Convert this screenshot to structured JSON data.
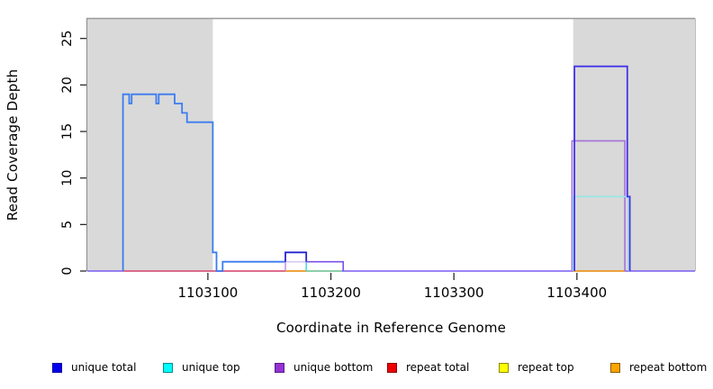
{
  "chart_data": {
    "type": "line",
    "title": "",
    "xlabel": "Coordinate in Reference Genome",
    "ylabel": "Read Coverage Depth",
    "x_range": [
      1103002,
      1103496
    ],
    "y_range": [
      0,
      27
    ],
    "grid": false,
    "legend_position": "bottom",
    "x_ticks": [
      {
        "value": 1103100,
        "label": "1103100"
      },
      {
        "value": 1103200,
        "label": "1103200"
      },
      {
        "value": 1103300,
        "label": "1103300"
      },
      {
        "value": 1103400,
        "label": "1103400"
      }
    ],
    "y_ticks": [
      {
        "value": 0,
        "label": "0"
      },
      {
        "value": 5,
        "label": "5"
      },
      {
        "value": 10,
        "label": "10"
      },
      {
        "value": 15,
        "label": "15"
      },
      {
        "value": 20,
        "label": "20"
      },
      {
        "value": 25,
        "label": "25"
      }
    ],
    "shaded_regions": [
      {
        "name": "left-repeat-region",
        "from": 1103002,
        "to": 1103104,
        "color": "#d9d9d9"
      },
      {
        "name": "right-repeat-region",
        "from": 1103397,
        "to": 1103496,
        "color": "#d9d9d9"
      }
    ],
    "baseline_segments": [
      {
        "name": "unique-bottom-zero-line",
        "from": 1103002,
        "to": 1103496,
        "depth": 0,
        "color": "#7a5cf2"
      },
      {
        "name": "repeat-total-zero-segment",
        "from": 1103031,
        "to": 1103163,
        "depth": 0,
        "color": "#e8596b"
      },
      {
        "name": "overlap-zero-segment",
        "from": 1103180,
        "to": 1103209,
        "depth": 0,
        "color": "#7fd98f"
      },
      {
        "name": "repeat-bottom-zero-mid",
        "from": 1103163,
        "to": 1103180,
        "depth": 0,
        "color": "#ffa000"
      },
      {
        "name": "repeat-bottom-zero-right",
        "from": 1103397,
        "to": 1103439,
        "depth": 0,
        "color": "#ffa000"
      }
    ],
    "lines": [
      {
        "name": "unique-total-left",
        "color": "#3b7cf0",
        "width": 1.8,
        "points": [
          [
            1103031,
            0
          ],
          [
            1103031,
            19
          ],
          [
            1103036,
            19
          ],
          [
            1103036,
            18
          ],
          [
            1103038,
            18
          ],
          [
            1103038,
            19
          ],
          [
            1103058,
            19
          ],
          [
            1103058,
            18
          ],
          [
            1103060,
            18
          ],
          [
            1103060,
            19
          ],
          [
            1103073,
            19
          ],
          [
            1103073,
            18
          ],
          [
            1103079,
            18
          ],
          [
            1103079,
            17
          ],
          [
            1103083,
            17
          ],
          [
            1103083,
            16
          ],
          [
            1103104,
            16
          ],
          [
            1103104,
            2
          ],
          [
            1103107,
            2
          ],
          [
            1103107,
            0
          ],
          [
            1103112,
            0
          ],
          [
            1103112,
            1
          ],
          [
            1103163,
            1
          ]
        ]
      },
      {
        "name": "unique-top-mid-level",
        "color": "#d9c6ef",
        "width": 1.5,
        "points": [
          [
            1103163,
            1
          ],
          [
            1103180,
            1
          ]
        ]
      },
      {
        "name": "unique-bottom-mid-edge",
        "color": "#c08ae0",
        "width": 1.5,
        "points": [
          [
            1103163,
            0
          ],
          [
            1103163,
            1
          ]
        ]
      },
      {
        "name": "unique-top-mid-edge",
        "color": "#45d8d8",
        "width": 1.5,
        "points": [
          [
            1103180,
            0
          ],
          [
            1103180,
            1
          ]
        ]
      },
      {
        "name": "unique-total-mid-box",
        "color": "#2424ce",
        "width": 1.8,
        "points": [
          [
            1103163,
            1
          ],
          [
            1103163,
            2
          ],
          [
            1103180,
            2
          ],
          [
            1103180,
            1
          ]
        ]
      },
      {
        "name": "unique-bottom-mid",
        "color": "#7b50e8",
        "width": 1.6,
        "points": [
          [
            1103180,
            1
          ],
          [
            1103210,
            1
          ],
          [
            1103210,
            0
          ]
        ]
      },
      {
        "name": "unique-bottom-right",
        "color": "#a571d9",
        "width": 1.6,
        "points": [
          [
            1103396,
            0
          ],
          [
            1103396,
            14
          ],
          [
            1103439,
            14
          ],
          [
            1103439,
            0
          ]
        ]
      },
      {
        "name": "unique-top-right",
        "color": "#95e6e8",
        "width": 1.6,
        "points": [
          [
            1103397,
            0
          ],
          [
            1103397,
            8
          ],
          [
            1103442,
            8
          ],
          [
            1103442,
            0
          ]
        ]
      },
      {
        "name": "unique-total-right",
        "color": "#4434e8",
        "width": 1.8,
        "points": [
          [
            1103398,
            0
          ],
          [
            1103398,
            22
          ],
          [
            1103441,
            22
          ],
          [
            1103441,
            8
          ],
          [
            1103443,
            8
          ],
          [
            1103443,
            0
          ]
        ]
      }
    ]
  },
  "legend": {
    "items": [
      {
        "label": "unique total",
        "fill": "#0000ee",
        "border": "#00009b"
      },
      {
        "label": "unique top",
        "fill": "#00ffff",
        "border": "#008b8b"
      },
      {
        "label": "unique bottom",
        "fill": "#9432d2",
        "border": "#551a8b"
      },
      {
        "label": "repeat total",
        "fill": "#ee0000",
        "border": "#8b0000"
      },
      {
        "label": "repeat top",
        "fill": "#ffff00",
        "border": "#8b8b00"
      },
      {
        "label": "repeat bottom",
        "fill": "#ffa500",
        "border": "#8b5a00"
      }
    ]
  },
  "colors": {
    "plot_border_top": "#9a9a9a",
    "plot_border_side": "#8a8a8a",
    "axis": "#2b2b2b",
    "tick_label": "#000000",
    "shaded": "#d9d9d9"
  }
}
